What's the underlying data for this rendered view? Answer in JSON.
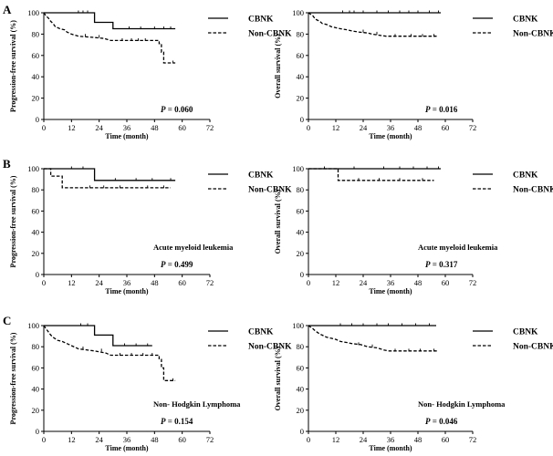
{
  "chart_data": [
    {
      "id": "A-left",
      "panel_letter": "A",
      "type": "line",
      "ylabel": "Progression-free survival (%)",
      "xlabel": "Time (month)",
      "xticks": [
        "0",
        "12",
        "24",
        "36",
        "48",
        "60",
        "72"
      ],
      "yticks": [
        "0",
        "20",
        "40",
        "60",
        "80",
        "100"
      ],
      "xlim": [
        0,
        72
      ],
      "ylim": [
        0,
        100
      ],
      "annotation": "",
      "p_value": "P = 0.060",
      "series": [
        {
          "name": "CBNK",
          "style": "solid",
          "steps": [
            [
              0,
              100
            ],
            [
              22,
              100
            ],
            [
              22,
              91
            ],
            [
              30,
              91
            ],
            [
              30,
              85
            ],
            [
              57,
              85
            ]
          ],
          "censor": [
            [
              15,
              100
            ],
            [
              17,
              100
            ],
            [
              19,
              100
            ],
            [
              37,
              85
            ],
            [
              42,
              85
            ],
            [
              48,
              85
            ],
            [
              52,
              85
            ],
            [
              55,
              85
            ]
          ]
        },
        {
          "name": "Non-CBNK",
          "style": "dashed",
          "steps": [
            [
              0,
              100
            ],
            [
              1,
              97
            ],
            [
              2,
              95
            ],
            [
              3,
              92
            ],
            [
              4,
              90
            ],
            [
              5,
              87
            ],
            [
              7,
              85
            ],
            [
              9,
              84
            ],
            [
              10,
              82
            ],
            [
              12,
              80
            ],
            [
              15,
              78
            ],
            [
              21,
              77
            ],
            [
              26,
              76
            ],
            [
              29,
              74
            ],
            [
              50,
              74
            ],
            [
              50,
              71
            ],
            [
              51,
              71
            ],
            [
              51,
              63
            ],
            [
              52,
              63
            ],
            [
              52,
              53
            ],
            [
              57,
              53
            ]
          ],
          "censor": [
            [
              18,
              78
            ],
            [
              24,
              77
            ],
            [
              34,
              74
            ],
            [
              38,
              74
            ],
            [
              41,
              74
            ],
            [
              44,
              74
            ],
            [
              56,
              53
            ]
          ]
        }
      ]
    },
    {
      "id": "A-right",
      "panel_letter": "",
      "type": "line",
      "ylabel": "Overall survival (%)",
      "xlabel": "Time (month)",
      "xticks": [
        "0",
        "12",
        "24",
        "36",
        "48",
        "60",
        "72"
      ],
      "yticks": [
        "0",
        "20",
        "40",
        "60",
        "80",
        "100"
      ],
      "xlim": [
        0,
        72
      ],
      "ylim": [
        0,
        100
      ],
      "annotation": "",
      "p_value": "P = 0.016",
      "series": [
        {
          "name": "CBNK",
          "style": "solid",
          "steps": [
            [
              0,
              100
            ],
            [
              58,
              100
            ]
          ],
          "censor": [
            [
              15,
              100
            ],
            [
              18,
              100
            ],
            [
              20,
              100
            ],
            [
              24,
              100
            ],
            [
              30,
              100
            ],
            [
              35,
              100
            ],
            [
              40,
              100
            ],
            [
              44,
              100
            ],
            [
              48,
              100
            ],
            [
              53,
              100
            ],
            [
              57,
              100
            ]
          ]
        },
        {
          "name": "Non-CBNK",
          "style": "dashed",
          "steps": [
            [
              0,
              100
            ],
            [
              2,
              97
            ],
            [
              3,
              94
            ],
            [
              5,
              92
            ],
            [
              6,
              90
            ],
            [
              8,
              89
            ],
            [
              10,
              87
            ],
            [
              12,
              86
            ],
            [
              14,
              85
            ],
            [
              17,
              84
            ],
            [
              19,
              83
            ],
            [
              22,
              82
            ],
            [
              26,
              81
            ],
            [
              28,
              80
            ],
            [
              31,
              79
            ],
            [
              34,
              78
            ],
            [
              57,
              78
            ]
          ],
          "censor": [
            [
              24,
              82
            ],
            [
              30,
              80
            ],
            [
              38,
              78
            ],
            [
              45,
              78
            ],
            [
              50,
              78
            ],
            [
              55,
              78
            ]
          ]
        }
      ]
    },
    {
      "id": "B-left",
      "panel_letter": "B",
      "type": "line",
      "ylabel": "Progression-free survival (%)",
      "xlabel": "Time (month)",
      "xticks": [
        "0",
        "12",
        "24",
        "36",
        "48",
        "60",
        "72"
      ],
      "yticks": [
        "0",
        "20",
        "40",
        "60",
        "80",
        "100"
      ],
      "xlim": [
        0,
        72
      ],
      "ylim": [
        0,
        100
      ],
      "annotation": "Acute myeloid leukemia",
      "p_value": "P = 0.499",
      "series": [
        {
          "name": "CBNK",
          "style": "solid",
          "steps": [
            [
              0,
              100
            ],
            [
              22,
              100
            ],
            [
              22,
              89
            ],
            [
              57,
              89
            ]
          ],
          "censor": [
            [
              12,
              100
            ],
            [
              17,
              100
            ],
            [
              31,
              89
            ],
            [
              40,
              89
            ],
            [
              47,
              89
            ],
            [
              55,
              89
            ]
          ]
        },
        {
          "name": "Non-CBNK",
          "style": "dashed",
          "steps": [
            [
              0,
              100
            ],
            [
              3,
              100
            ],
            [
              3,
              93
            ],
            [
              8,
              93
            ],
            [
              8,
              82
            ],
            [
              55,
              82
            ]
          ],
          "censor": [
            [
              20,
              82
            ],
            [
              26,
              82
            ],
            [
              33,
              82
            ],
            [
              45,
              82
            ],
            [
              52,
              82
            ]
          ]
        }
      ]
    },
    {
      "id": "B-right",
      "panel_letter": "",
      "type": "line",
      "ylabel": "Overall survival (%)",
      "xlabel": "Time (month)",
      "xticks": [
        "0",
        "12",
        "24",
        "36",
        "48",
        "60",
        "72"
      ],
      "yticks": [
        "0",
        "20",
        "40",
        "60",
        "80",
        "100"
      ],
      "xlim": [
        0,
        72
      ],
      "ylim": [
        0,
        100
      ],
      "annotation": "Acute myeloid leukemia",
      "p_value": "P = 0.317",
      "series": [
        {
          "name": "CBNK",
          "style": "solid",
          "steps": [
            [
              0,
              100
            ],
            [
              58,
              100
            ]
          ],
          "censor": [
            [
              7,
              100
            ],
            [
              20,
              100
            ],
            [
              33,
              100
            ],
            [
              40,
              100
            ],
            [
              46,
              100
            ],
            [
              52,
              100
            ],
            [
              57,
              100
            ]
          ]
        },
        {
          "name": "Non-CBNK",
          "style": "dashed",
          "steps": [
            [
              0,
              100
            ],
            [
              13,
              100
            ],
            [
              13,
              89
            ],
            [
              55,
              89
            ]
          ],
          "censor": [
            [
              22,
              89
            ],
            [
              31,
              89
            ],
            [
              40,
              89
            ],
            [
              50,
              89
            ]
          ]
        }
      ]
    },
    {
      "id": "C-left",
      "panel_letter": "C",
      "type": "line",
      "ylabel": "Progression-free survival (%)",
      "xlabel": "Time (month)",
      "xticks": [
        "0",
        "12",
        "24",
        "36",
        "48",
        "60",
        "72"
      ],
      "yticks": [
        "0",
        "20",
        "40",
        "60",
        "80",
        "100"
      ],
      "xlim": [
        0,
        72
      ],
      "ylim": [
        0,
        100
      ],
      "annotation": "Non- Hodgkin Lymphoma",
      "p_value": "P = 0.154",
      "series": [
        {
          "name": "CBNK",
          "style": "solid",
          "steps": [
            [
              0,
              100
            ],
            [
              22,
              100
            ],
            [
              22,
              91
            ],
            [
              30,
              91
            ],
            [
              30,
              81
            ],
            [
              47,
              81
            ]
          ],
          "censor": [
            [
              16,
              100
            ],
            [
              19,
              100
            ],
            [
              35,
              81
            ],
            [
              40,
              81
            ],
            [
              45,
              81
            ]
          ]
        },
        {
          "name": "Non-CBNK",
          "style": "dashed",
          "steps": [
            [
              0,
              100
            ],
            [
              1,
              97
            ],
            [
              2,
              94
            ],
            [
              3,
              91
            ],
            [
              4,
              89
            ],
            [
              6,
              86
            ],
            [
              8,
              85
            ],
            [
              10,
              83
            ],
            [
              12,
              81
            ],
            [
              15,
              78
            ],
            [
              22,
              76
            ],
            [
              27,
              74
            ],
            [
              29,
              72
            ],
            [
              50,
              72
            ],
            [
              50,
              68
            ],
            [
              51,
              68
            ],
            [
              51,
              60
            ],
            [
              52,
              60
            ],
            [
              52,
              48
            ],
            [
              57,
              48
            ]
          ],
          "censor": [
            [
              17,
              78
            ],
            [
              25,
              76
            ],
            [
              33,
              72
            ],
            [
              38,
              72
            ],
            [
              43,
              72
            ],
            [
              47,
              72
            ],
            [
              56,
              48
            ]
          ]
        }
      ]
    },
    {
      "id": "C-right",
      "panel_letter": "",
      "type": "line",
      "ylabel": "Overall survival (%)",
      "xlabel": "Time (month)",
      "xticks": [
        "0",
        "12",
        "24",
        "36",
        "48",
        "60",
        "72"
      ],
      "yticks": [
        "0",
        "20",
        "40",
        "60",
        "80",
        "100"
      ],
      "xlim": [
        0,
        72
      ],
      "ylim": [
        0,
        100
      ],
      "annotation": "Non- Hodgkin Lymphoma",
      "p_value": "P = 0.046",
      "series": [
        {
          "name": "CBNK",
          "style": "solid",
          "steps": [
            [
              0,
              100
            ],
            [
              56,
              100
            ]
          ],
          "censor": [
            [
              14,
              100
            ],
            [
              19,
              100
            ],
            [
              24,
              100
            ],
            [
              30,
              100
            ],
            [
              35,
              100
            ],
            [
              41,
              100
            ],
            [
              47,
              100
            ],
            [
              53,
              100
            ]
          ]
        },
        {
          "name": "Non-CBNK",
          "style": "dashed",
          "steps": [
            [
              0,
              100
            ],
            [
              2,
              97
            ],
            [
              3,
              95
            ],
            [
              5,
              92
            ],
            [
              6,
              91
            ],
            [
              8,
              89
            ],
            [
              10,
              88
            ],
            [
              12,
              87
            ],
            [
              14,
              85
            ],
            [
              17,
              84
            ],
            [
              19,
              83
            ],
            [
              23,
              82
            ],
            [
              26,
              80
            ],
            [
              30,
              79
            ],
            [
              33,
              77
            ],
            [
              35,
              76
            ],
            [
              57,
              76
            ]
          ],
          "censor": [
            [
              22,
              82
            ],
            [
              28,
              80
            ],
            [
              38,
              76
            ],
            [
              44,
              76
            ],
            [
              49,
              76
            ],
            [
              55,
              76
            ]
          ]
        }
      ]
    }
  ]
}
